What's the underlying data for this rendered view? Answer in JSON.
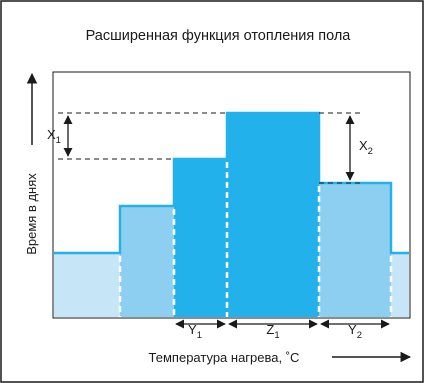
{
  "title": "Расширенная функция отопления пола",
  "y_axis_label": "Время в днях",
  "x_axis_label": "Температура нагрева, ˚C",
  "dimensions": {
    "x1": {
      "main": "X",
      "sub": "1"
    },
    "x2": {
      "main": "X",
      "sub": "2"
    },
    "y1": {
      "main": "Y",
      "sub": "1"
    },
    "z1": {
      "main": "Z",
      "sub": "1"
    },
    "y2": {
      "main": "Y",
      "sub": "2"
    }
  },
  "colors": {
    "light_fill": "#c6e5f6",
    "medium_fill": "#8dcff1",
    "strong_fill": "#22b1ea",
    "outline": "#22b1ea",
    "ink": "#1a1a1a"
  }
}
